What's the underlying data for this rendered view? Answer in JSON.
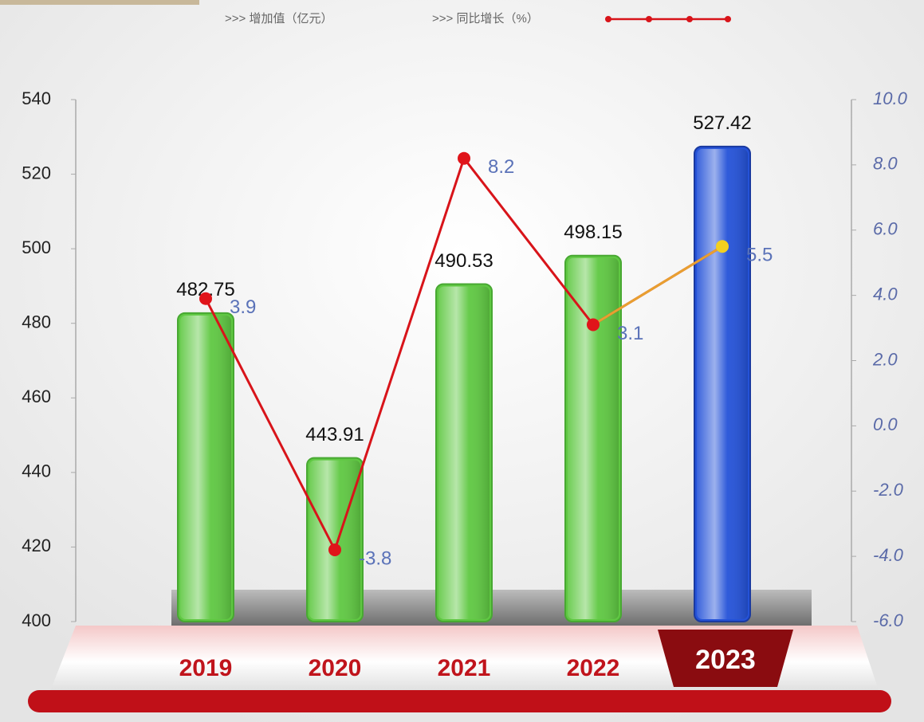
{
  "chart_data": {
    "type": "bar",
    "categories": [
      "2019",
      "2020",
      "2021",
      "2022",
      "2023"
    ],
    "series": [
      {
        "name": ">>> 增加值（亿元）",
        "type": "bar",
        "colors": [
          "#5fc842",
          "#5fc842",
          "#5fc842",
          "#5fc842",
          "#2452d8"
        ],
        "values": [
          482.75,
          443.91,
          490.53,
          498.15,
          527.42
        ]
      },
      {
        "name": ">>> 同比增长（%）",
        "type": "line",
        "axis": "y2",
        "color": "#d8141a",
        "point_colors": [
          "#e0141a",
          "#e0141a",
          "#e0141a",
          "#e0141a",
          "#f2d020"
        ],
        "values": [
          3.9,
          -3.8,
          8.2,
          3.1,
          5.5
        ]
      }
    ],
    "ylim": [
      400,
      540
    ],
    "yticks": [
      400,
      420,
      440,
      460,
      480,
      500,
      520,
      540
    ],
    "y2lim": [
      -6,
      10
    ],
    "y2ticks": [
      {
        "value": -6,
        "label": "-6.0"
      },
      {
        "value": -4,
        "label": "-4.0"
      },
      {
        "value": -2,
        "label": "-2.0"
      },
      {
        "value": 0,
        "label": "0.0"
      },
      {
        "value": 2,
        "label": "2.0"
      },
      {
        "value": 4,
        "label": "4.0"
      },
      {
        "value": 6,
        "label": "6.0"
      },
      {
        "value": 8,
        "label": "8.0"
      },
      {
        "value": 10,
        "label": "10.0"
      }
    ],
    "highlight_index": 4
  }
}
